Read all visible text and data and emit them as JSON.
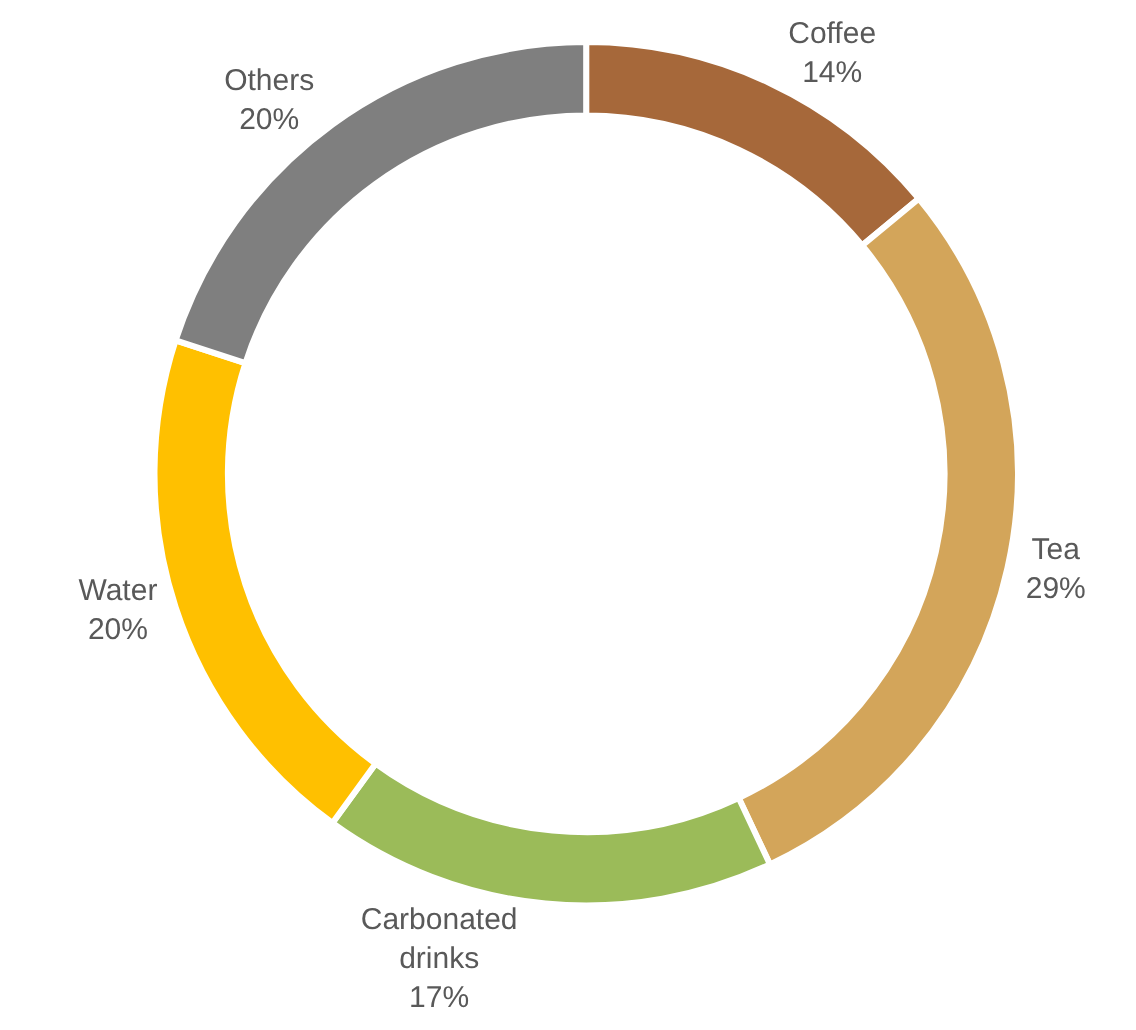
{
  "chart_data": {
    "type": "donut",
    "categories": [
      "Coffee",
      "Tea",
      "Carbonated drinks",
      "Water",
      "Others"
    ],
    "values": [
      14,
      29,
      17,
      20,
      20
    ],
    "colors": [
      "#a6683a",
      "#d3a55a",
      "#9bbb59",
      "#ffc000",
      "#7f7f7f"
    ],
    "value_labels": [
      "14%",
      "29%",
      "17%",
      "20%",
      "20%"
    ],
    "legend": false
  }
}
